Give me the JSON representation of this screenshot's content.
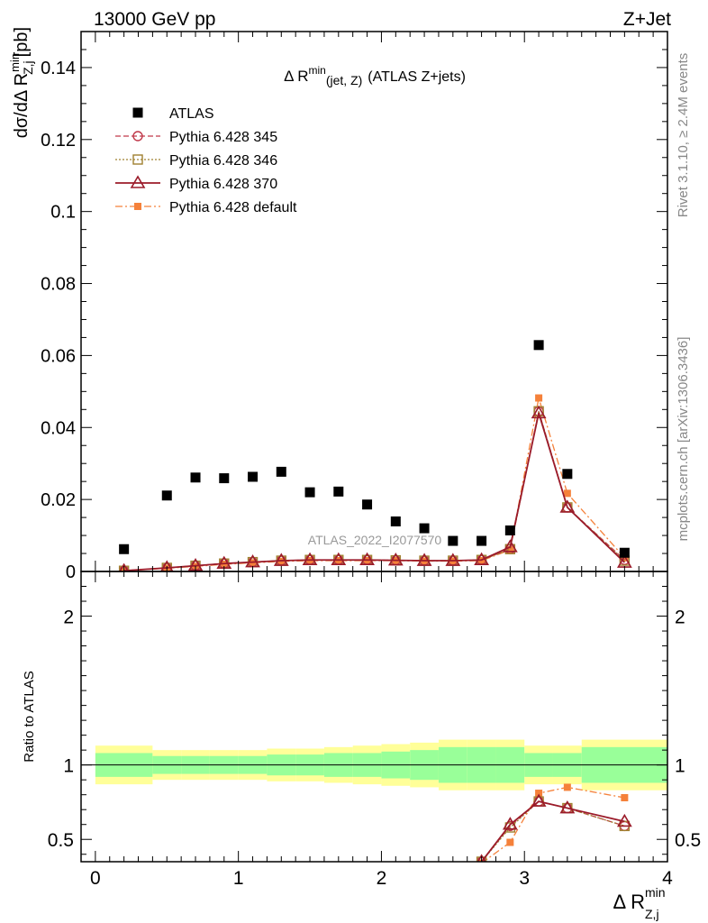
{
  "header": {
    "left": "13000 GeV pp",
    "right": "Z+Jet"
  },
  "side_labels": {
    "rivet": "Rivet 3.1.10, ≥ 2.4M events",
    "mcplots": "mcplots.cern.ch [arXiv:1306.3436]"
  },
  "watermark": "ATLAS_2022_I2077570",
  "colors": {
    "atlas": "#000000",
    "p345": "#c0394a",
    "p346": "#a08030",
    "p370": "#9b1b2a",
    "pdefault": "#f5813a",
    "band_inner": "#99ff99",
    "band_outer": "#ffff99"
  },
  "chart_data": [
    {
      "type": "scatter",
      "panel": "main",
      "title_main": "Δ R",
      "title_sup": "min",
      "title_sub": "(jet, Z)",
      "title_rest": "(ATLAS Z+jets)",
      "ylabel": "dσ/dΔ R",
      "ylabel_sup": "min",
      "ylabel_sub": "Z,j",
      "ylabel_unit": "[pb]",
      "xlim": [
        -0.1,
        4.0
      ],
      "ylim": [
        0,
        0.15
      ],
      "yticks": [
        0,
        0.02,
        0.04,
        0.06,
        0.08,
        0.1,
        0.12,
        0.14
      ],
      "ytick_labels": [
        "0",
        "0.02",
        "0.04",
        "0.06",
        "0.08",
        "0.1",
        "0.12",
        "0.14"
      ],
      "x": [
        0.2,
        0.5,
        0.7,
        0.9,
        1.1,
        1.3,
        1.5,
        1.7,
        1.9,
        2.1,
        2.3,
        2.5,
        2.7,
        2.9,
        3.1,
        3.3,
        3.7
      ],
      "series": [
        {
          "key": "atlas",
          "name": "ATLAS",
          "marker": "square-filled",
          "line": "none",
          "values": [
            0.0062,
            0.0211,
            0.0261,
            0.0259,
            0.0263,
            0.0277,
            0.022,
            0.0222,
            0.0186,
            0.0139,
            0.012,
            0.0085,
            0.0085,
            0.0114,
            0.0629,
            0.0271,
            0.0052
          ]
        },
        {
          "key": "p345",
          "name": "Pythia 6.428 345",
          "marker": "circle-open",
          "line": "dashed",
          "values": [
            0.0002,
            0.001,
            0.0016,
            0.0022,
            0.0026,
            0.003,
            0.0032,
            0.0032,
            0.0032,
            0.0031,
            0.003,
            0.003,
            0.0032,
            0.0062,
            0.0445,
            0.0178,
            0.0032
          ]
        },
        {
          "key": "p346",
          "name": "Pythia 6.428 346",
          "marker": "square-open",
          "line": "dotted",
          "values": [
            0.0002,
            0.001,
            0.0016,
            0.0022,
            0.0026,
            0.003,
            0.0032,
            0.0032,
            0.0032,
            0.0031,
            0.003,
            0.003,
            0.0032,
            0.0062,
            0.0445,
            0.0178,
            0.003
          ]
        },
        {
          "key": "p370",
          "name": "Pythia 6.428 370",
          "marker": "triangle-open",
          "line": "solid",
          "values": [
            0.0002,
            0.001,
            0.0016,
            0.0022,
            0.0026,
            0.003,
            0.0032,
            0.0032,
            0.0032,
            0.0031,
            0.003,
            0.003,
            0.0032,
            0.0068,
            0.044,
            0.0178,
            0.0025
          ]
        },
        {
          "key": "pdefault",
          "name": "Pythia 6.428 default",
          "marker": "square-filled-small",
          "line": "dashdot",
          "values": [
            0.0002,
            0.0009,
            0.0014,
            0.002,
            0.0024,
            0.0028,
            0.003,
            0.003,
            0.003,
            0.003,
            0.0029,
            0.0029,
            0.003,
            0.006,
            0.0482,
            0.0217,
            0.0038
          ]
        }
      ]
    },
    {
      "type": "line",
      "panel": "ratio",
      "ylabel": "Ratio to ATLAS",
      "xlabel": "Δ R",
      "xlabel_sup": "min",
      "xlabel_sub": "Z,j",
      "xlim": [
        -0.1,
        4.0
      ],
      "ylim": [
        0.35,
        2.3
      ],
      "xticks": [
        0,
        1,
        2,
        3,
        4
      ],
      "xtick_labels": [
        "0",
        "1",
        "2",
        "3",
        "4"
      ],
      "yticks": [
        0.5,
        1,
        2
      ],
      "ytick_labels": [
        "0.5",
        "1",
        "2"
      ],
      "reference": 1,
      "bands": {
        "edges": [
          0.0,
          0.4,
          0.6,
          0.8,
          1.0,
          1.2,
          1.4,
          1.6,
          1.8,
          2.0,
          2.2,
          2.4,
          2.6,
          2.8,
          3.0,
          3.2,
          3.4,
          4.0
        ],
        "inner": [
          0.08,
          0.06,
          0.06,
          0.06,
          0.06,
          0.07,
          0.07,
          0.08,
          0.08,
          0.09,
          0.1,
          0.12,
          0.12,
          0.12,
          0.08,
          0.08,
          0.12
        ],
        "outer": [
          0.13,
          0.1,
          0.1,
          0.1,
          0.1,
          0.11,
          0.11,
          0.12,
          0.13,
          0.14,
          0.15,
          0.17,
          0.17,
          0.17,
          0.13,
          0.13,
          0.17
        ]
      },
      "x": [
        2.7,
        2.9,
        3.1,
        3.3,
        3.7
      ],
      "series": [
        {
          "key": "p345",
          "values": [
            0.35,
            0.59,
            0.755,
            0.71,
            0.59
          ]
        },
        {
          "key": "p346",
          "values": [
            0.35,
            0.58,
            0.755,
            0.71,
            0.59
          ]
        },
        {
          "key": "p370",
          "values": [
            0.35,
            0.6,
            0.755,
            0.71,
            0.62
          ]
        },
        {
          "key": "pdefault",
          "values": [
            0.34,
            0.48,
            0.81,
            0.85,
            0.78
          ]
        }
      ]
    }
  ]
}
